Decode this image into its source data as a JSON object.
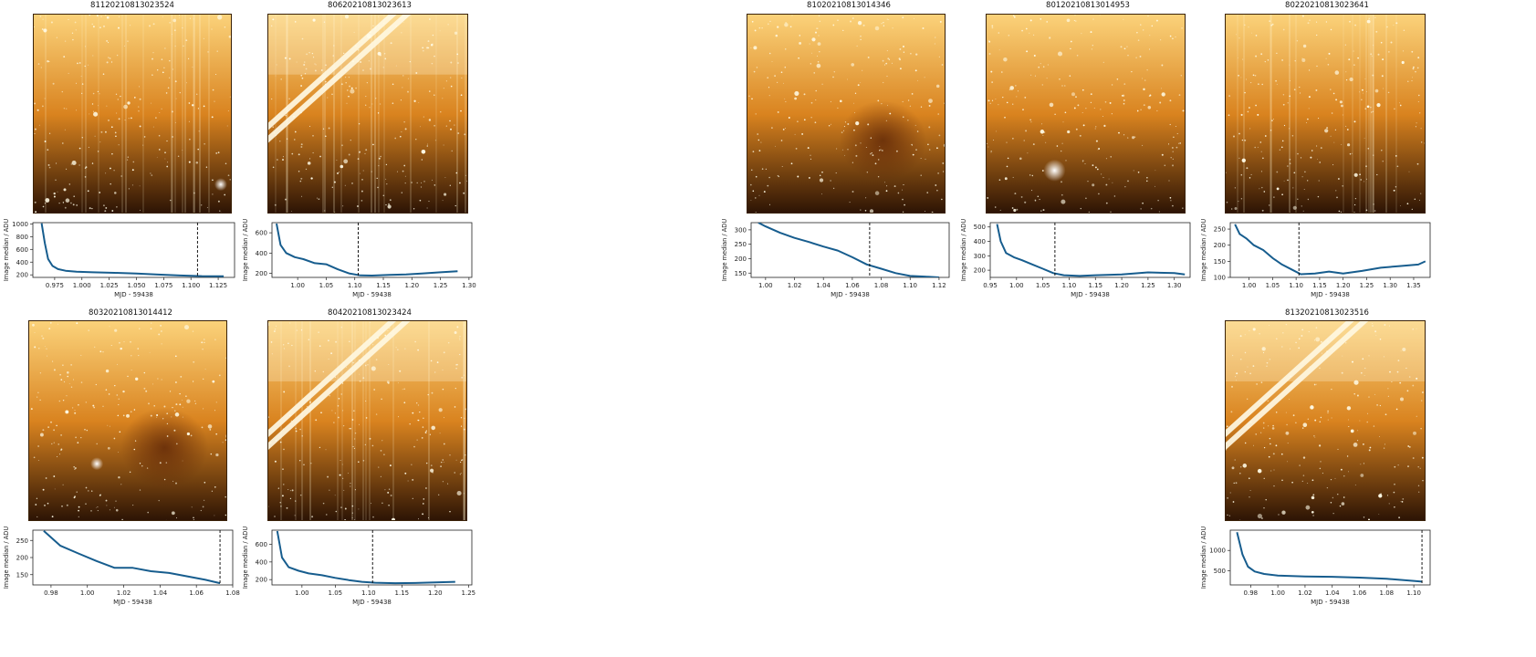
{
  "panels": [
    {
      "id": "81120210813023524",
      "title": "81120210813023524",
      "image": {
        "streaks": false,
        "vertical_lines": true,
        "bright_star": true,
        "dark_blob": false
      },
      "chart_data": {
        "type": "line",
        "xlabel": "MJD - 59438",
        "ylabel": "Image median / ADU",
        "xlim": [
          0.955,
          1.14
        ],
        "ylim": [
          160,
          1020
        ],
        "xticks": [
          0.975,
          1.0,
          1.025,
          1.05,
          1.075,
          1.1,
          1.125
        ],
        "xtick_labels": [
          "0.975",
          "1.000",
          "1.025",
          "1.050",
          "1.075",
          "1.100",
          "1.125"
        ],
        "yticks": [
          200,
          400,
          600,
          800,
          1000
        ],
        "ytick_labels": [
          "200",
          "400",
          "600",
          "800",
          "1000"
        ],
        "vline": 1.106,
        "series": [
          {
            "x": [
              0.963,
              0.966,
              0.969,
              0.973,
              0.978,
              0.985,
              0.995,
              1.01,
              1.03,
              1.05,
              1.07,
              1.09,
              1.11,
              1.13
            ],
            "y": [
              1010,
              700,
              450,
              340,
              290,
              265,
              250,
              240,
              232,
              222,
              205,
              190,
              180,
              178
            ]
          }
        ]
      }
    },
    {
      "id": "80620210813023613",
      "title": "80620210813023613",
      "image": {
        "streaks": true,
        "vertical_lines": true,
        "bright_star": false,
        "dark_blob": false
      },
      "chart_data": {
        "type": "line",
        "xlabel": "MJD - 59438",
        "ylabel": "Image median / ADU",
        "xlim": [
          0.955,
          1.305
        ],
        "ylim": [
          160,
          700
        ],
        "xticks": [
          1.0,
          1.05,
          1.1,
          1.15,
          1.2,
          1.25,
          1.3
        ],
        "xtick_labels": [
          "1.00",
          "1.05",
          "1.10",
          "1.15",
          "1.20",
          "1.25",
          "1.30"
        ],
        "yticks": [
          200,
          400,
          600
        ],
        "ytick_labels": [
          "200",
          "400",
          "600"
        ],
        "vline": 1.106,
        "series": [
          {
            "x": [
              0.963,
              0.97,
              0.98,
              0.995,
              1.01,
              1.03,
              1.05,
              1.07,
              1.09,
              1.11,
              1.13,
              1.16,
              1.19,
              1.22,
              1.25,
              1.28
            ],
            "y": [
              690,
              480,
              400,
              360,
              340,
              300,
              290,
              240,
              200,
              180,
              178,
              185,
              190,
              200,
              210,
              220
            ]
          }
        ]
      }
    },
    {
      "id": "81020210813014346",
      "title": "81020210813014346",
      "image": {
        "streaks": false,
        "vertical_lines": false,
        "bright_star": false,
        "dark_blob": true
      },
      "chart_data": {
        "type": "line",
        "xlabel": "MJD - 59438",
        "ylabel": "Image median / ADU",
        "xlim": [
          0.99,
          1.127
        ],
        "ylim": [
          135,
          325
        ],
        "xticks": [
          1.0,
          1.02,
          1.04,
          1.06,
          1.08,
          1.1,
          1.12
        ],
        "xtick_labels": [
          "1.00",
          "1.02",
          "1.04",
          "1.06",
          "1.08",
          "1.10",
          "1.12"
        ],
        "yticks": [
          150,
          200,
          250,
          300
        ],
        "ytick_labels": [
          "150",
          "200",
          "250",
          "300"
        ],
        "vline": 1.072,
        "series": [
          {
            "x": [
              0.995,
              1.0,
              1.01,
              1.02,
              1.03,
              1.04,
              1.05,
              1.06,
              1.07,
              1.08,
              1.09,
              1.1,
              1.11,
              1.12
            ],
            "y": [
              325,
              312,
              290,
              272,
              258,
              242,
              228,
              205,
              180,
              165,
              150,
              140,
              138,
              135
            ]
          }
        ]
      }
    },
    {
      "id": "80120210813014953",
      "title": "80120210813014953",
      "image": {
        "streaks": false,
        "vertical_lines": false,
        "bright_star": true,
        "dark_blob": false
      },
      "chart_data": {
        "type": "line",
        "xlabel": "MJD - 59438",
        "ylabel": "Image median / ADU",
        "xlim": [
          0.95,
          1.33
        ],
        "ylim": [
          150,
          530
        ],
        "xticks": [
          0.95,
          1.0,
          1.05,
          1.1,
          1.15,
          1.2,
          1.25,
          1.3
        ],
        "xtick_labels": [
          "0.95",
          "1.00",
          "1.05",
          "1.10",
          "1.15",
          "1.20",
          "1.25",
          "1.30"
        ],
        "yticks": [
          200,
          300,
          400,
          500
        ],
        "ytick_labels": [
          "200",
          "300",
          "400",
          "500"
        ],
        "vline": 1.073,
        "series": [
          {
            "x": [
              0.963,
              0.97,
              0.98,
              0.995,
              1.01,
              1.03,
              1.05,
              1.07,
              1.09,
              1.12,
              1.15,
              1.2,
              1.25,
              1.3,
              1.32
            ],
            "y": [
              520,
              400,
              320,
              290,
              270,
              240,
              210,
              180,
              165,
              160,
              165,
              170,
              185,
              180,
              170
            ]
          }
        ]
      }
    },
    {
      "id": "80220210813023641",
      "title": "80220210813023641",
      "image": {
        "streaks": false,
        "vertical_lines": true,
        "bright_star": false,
        "dark_blob": false
      },
      "chart_data": {
        "type": "line",
        "xlabel": "MJD - 59438",
        "ylabel": "Image median / ADU",
        "xlim": [
          0.96,
          1.385
        ],
        "ylim": [
          100,
          270
        ],
        "xticks": [
          1.0,
          1.05,
          1.1,
          1.15,
          1.2,
          1.25,
          1.3,
          1.35
        ],
        "xtick_labels": [
          "1.00",
          "1.05",
          "1.10",
          "1.15",
          "1.20",
          "1.25",
          "1.30",
          "1.35"
        ],
        "yticks": [
          100,
          150,
          200,
          250
        ],
        "ytick_labels": [
          "100",
          "150",
          "200",
          "250"
        ],
        "vline": 1.106,
        "series": [
          {
            "x": [
              0.97,
              0.98,
              0.995,
              1.01,
              1.03,
              1.05,
              1.07,
              1.09,
              1.11,
              1.14,
              1.17,
              1.2,
              1.24,
              1.28,
              1.32,
              1.36,
              1.375
            ],
            "y": [
              265,
              235,
              220,
              200,
              185,
              160,
              140,
              125,
              110,
              112,
              118,
              112,
              120,
              130,
              135,
              140,
              150
            ]
          }
        ]
      }
    },
    {
      "id": "80320210813014412",
      "title": "80320210813014412",
      "image": {
        "streaks": false,
        "vertical_lines": false,
        "bright_star": true,
        "dark_blob": true
      },
      "chart_data": {
        "type": "line",
        "xlabel": "MJD - 59438",
        "ylabel": "Image median / ADU",
        "xlim": [
          0.97,
          1.08
        ],
        "ylim": [
          120,
          280
        ],
        "xticks": [
          0.98,
          1.0,
          1.02,
          1.04,
          1.06,
          1.08
        ],
        "xtick_labels": [
          "0.98",
          "1.00",
          "1.02",
          "1.04",
          "1.06",
          "1.08"
        ],
        "yticks": [
          150,
          200,
          250
        ],
        "ytick_labels": [
          "150",
          "200",
          "250"
        ],
        "vline": 1.073,
        "series": [
          {
            "x": [
              0.976,
              0.985,
              0.995,
              1.005,
              1.015,
              1.025,
              1.035,
              1.045,
              1.055,
              1.065,
              1.073
            ],
            "y": [
              278,
              235,
              212,
              190,
              170,
              170,
              160,
              155,
              145,
              135,
              125
            ]
          }
        ]
      }
    },
    {
      "id": "80420210813023424",
      "title": "80420210813023424",
      "image": {
        "streaks": true,
        "vertical_lines": true,
        "bright_star": false,
        "dark_blob": false
      },
      "chart_data": {
        "type": "line",
        "xlabel": "MJD - 59438",
        "ylabel": "Image median / ADU",
        "xlim": [
          0.955,
          1.255
        ],
        "ylim": [
          140,
          760
        ],
        "xticks": [
          1.0,
          1.05,
          1.1,
          1.15,
          1.2,
          1.25
        ],
        "xtick_labels": [
          "1.00",
          "1.05",
          "1.10",
          "1.15",
          "1.20",
          "1.25"
        ],
        "yticks": [
          200,
          400,
          600
        ],
        "ytick_labels": [
          "200",
          "400",
          "600"
        ],
        "vline": 1.106,
        "series": [
          {
            "x": [
              0.963,
              0.97,
              0.98,
              0.995,
              1.01,
              1.03,
              1.05,
              1.07,
              1.09,
              1.11,
              1.14,
              1.17,
              1.2,
              1.23
            ],
            "y": [
              750,
              450,
              340,
              300,
              270,
              250,
              220,
              195,
              175,
              165,
              160,
              162,
              168,
              175
            ]
          }
        ]
      }
    },
    {
      "id": "81320210813023516",
      "title": "81320210813023516",
      "image": {
        "streaks": true,
        "vertical_lines": false,
        "bright_star": false,
        "dark_blob": false
      },
      "chart_data": {
        "type": "line",
        "xlabel": "MJD - 59438",
        "ylabel": "Image median / ADU",
        "xlim": [
          0.965,
          1.112
        ],
        "ylim": [
          150,
          1500
        ],
        "xticks": [
          0.98,
          1.0,
          1.02,
          1.04,
          1.06,
          1.08,
          1.1
        ],
        "xtick_labels": [
          "0.98",
          "1.00",
          "1.02",
          "1.04",
          "1.06",
          "1.08",
          "1.10"
        ],
        "yticks": [
          500,
          1000
        ],
        "ytick_labels": [
          "500",
          "1000"
        ],
        "vline": 1.106,
        "series": [
          {
            "x": [
              0.97,
              0.974,
              0.978,
              0.983,
              0.99,
              1.0,
              1.02,
              1.04,
              1.06,
              1.08,
              1.1,
              1.106
            ],
            "y": [
              1450,
              900,
              600,
              480,
              420,
              380,
              360,
              350,
              330,
              300,
              250,
              230
            ]
          }
        ]
      }
    }
  ]
}
